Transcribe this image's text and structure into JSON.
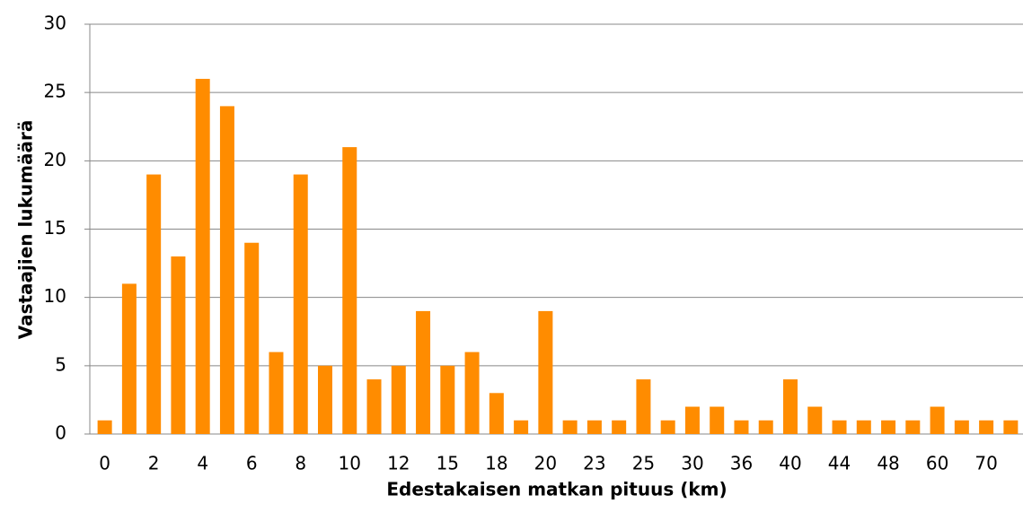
{
  "chart_data": {
    "type": "bar",
    "x_label": "Edestakaisen matkan pituus (km)",
    "y_label": "Vastaajien lukumäärä",
    "categories": [
      "0",
      null,
      "2",
      null,
      "4",
      null,
      "6",
      null,
      "8",
      null,
      "10",
      null,
      "12",
      null,
      "15",
      null,
      "18",
      null,
      "20",
      null,
      "23",
      null,
      "25",
      null,
      "30",
      null,
      "36",
      null,
      "40",
      null,
      "44",
      null,
      "48",
      null,
      "60",
      null,
      "70",
      null
    ],
    "values": [
      1,
      11,
      19,
      13,
      26,
      24,
      14,
      6,
      19,
      5,
      21,
      4,
      5,
      9,
      5,
      6,
      3,
      1,
      9,
      1,
      1,
      1,
      4,
      1,
      2,
      2,
      1,
      1,
      4,
      2,
      1,
      1,
      1,
      1,
      2,
      1,
      1,
      1
    ],
    "color": "#ff8c00",
    "ylim": [
      0,
      30
    ],
    "yticks": [
      0,
      5,
      10,
      15,
      20,
      25,
      30
    ],
    "grid": true
  }
}
